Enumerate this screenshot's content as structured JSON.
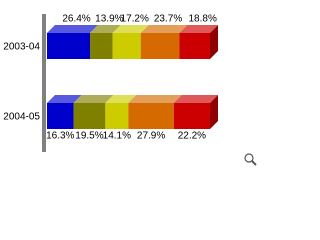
{
  "chart_data": {
    "type": "stacked-bar-3d",
    "categories": [
      "2003-04",
      "2004-05"
    ],
    "series": [
      {
        "color": "#0000cc",
        "values": [
          26.4,
          16.3
        ],
        "value_labels": [
          "26.4%",
          "16.3%"
        ]
      },
      {
        "color": "#7f7f00",
        "values": [
          13.9,
          19.5
        ],
        "value_labels": [
          "13.9%",
          "19.5%"
        ]
      },
      {
        "color": "#cccc00",
        "values": [
          17.2,
          14.1
        ],
        "value_labels": [
          "17.2%",
          "14.1%"
        ]
      },
      {
        "color": "#d46a00",
        "values": [
          23.7,
          27.9
        ],
        "value_labels": [
          "23.7%",
          "27.9%"
        ]
      },
      {
        "color": "#cc0000",
        "values": [
          18.8,
          22.2
        ],
        "value_labels": [
          "18.8%",
          "22.2%"
        ]
      }
    ]
  }
}
